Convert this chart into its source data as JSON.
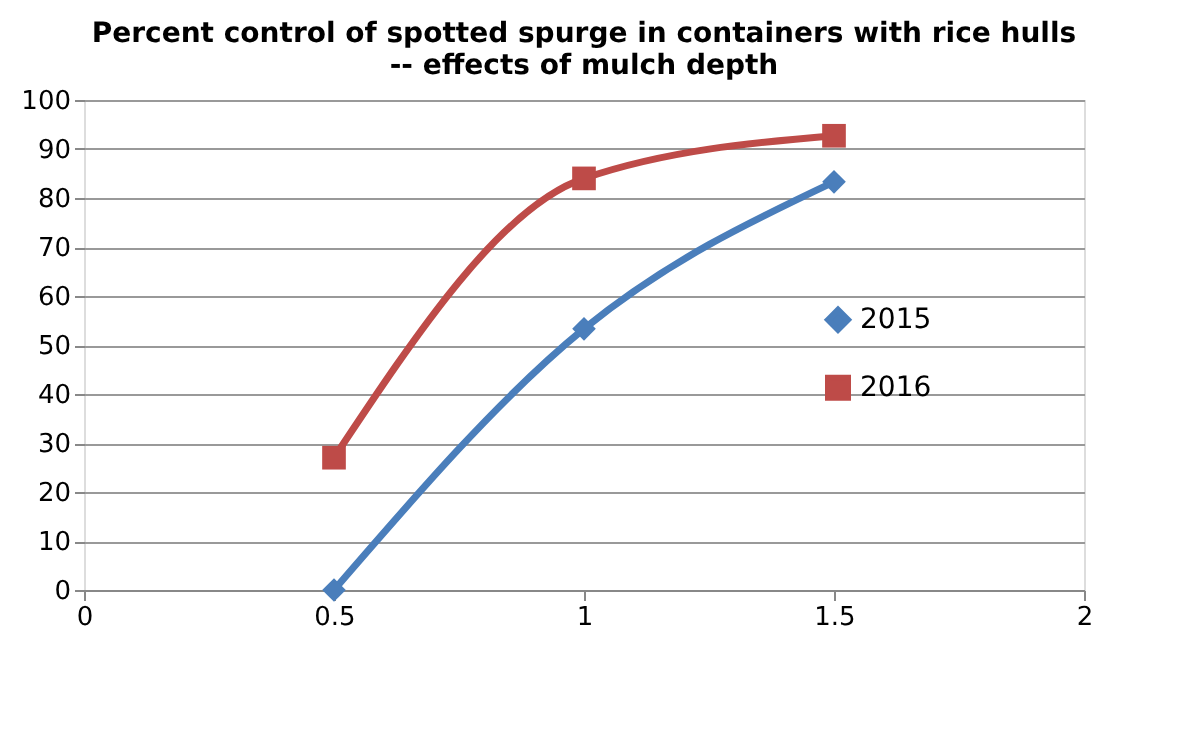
{
  "chart_data": {
    "type": "line",
    "title": "Percent control of spotted spurge in containers with rice hulls\n-- effects of mulch depth",
    "x": [
      0.5,
      1,
      1.5
    ],
    "series": [
      {
        "name": "2015",
        "color": "#4a7ebb",
        "marker": "diamond",
        "values": [
          0,
          53.3,
          83.3
        ]
      },
      {
        "name": "2016",
        "color": "#be4b48",
        "marker": "square",
        "values": [
          27,
          84,
          92.7
        ]
      }
    ],
    "xlim": [
      0,
      2
    ],
    "xticks": [
      0,
      0.5,
      1,
      1.5,
      2
    ],
    "ylim": [
      0,
      100
    ],
    "yticks": [
      0,
      10,
      20,
      30,
      40,
      50,
      60,
      70,
      80,
      90,
      100
    ],
    "grid": "y",
    "legend": "right",
    "line_style": "solid"
  }
}
